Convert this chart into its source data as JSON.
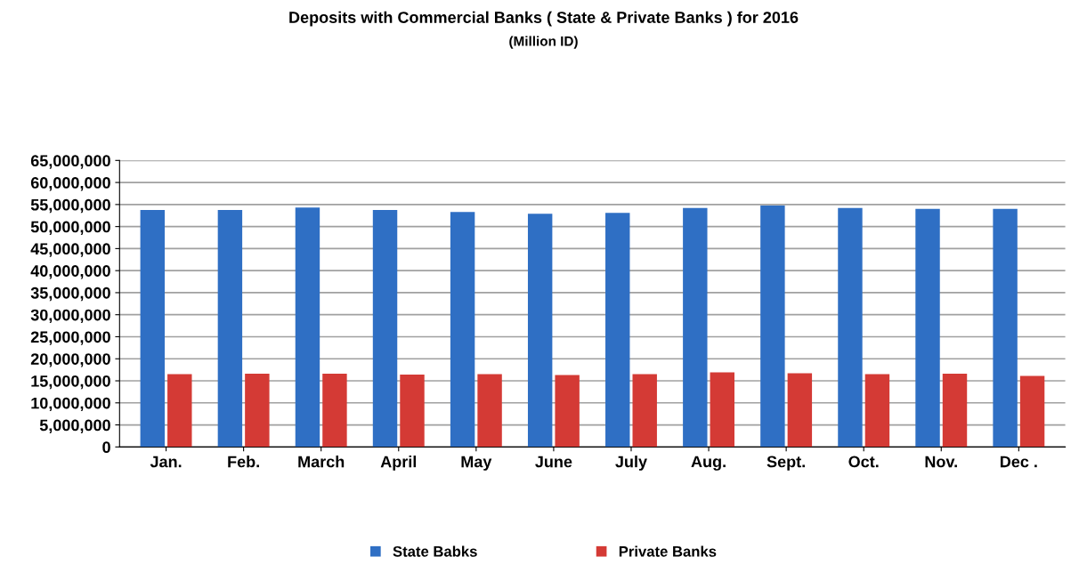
{
  "chart_data": {
    "type": "bar",
    "title": "Deposits with Commercial Banks ( State & Private Banks ) for 2016",
    "subtitle": "(Million ID)",
    "categories": [
      "Jan.",
      "Feb.",
      "March",
      "April",
      "May",
      "June",
      "July",
      "Aug.",
      "Sept.",
      "Oct.",
      "Nov.",
      "Dec ."
    ],
    "series": [
      {
        "name": "State Babks",
        "color": "#2f6fc4",
        "values": [
          53750000,
          53750000,
          54300000,
          53750000,
          53300000,
          52900000,
          53100000,
          54200000,
          54750000,
          54200000,
          54000000,
          54000000
        ]
      },
      {
        "name": "Private Banks",
        "color": "#d43a35",
        "values": [
          16500000,
          16600000,
          16600000,
          16400000,
          16500000,
          16300000,
          16500000,
          16900000,
          16700000,
          16500000,
          16600000,
          16100000
        ]
      }
    ],
    "ylim": [
      0,
      65000000
    ],
    "yticks": [
      {
        "value": 0,
        "label": "0"
      },
      {
        "value": 5000000,
        "label": "5,000,000"
      },
      {
        "value": 10000000,
        "label": "10,000,000"
      },
      {
        "value": 15000000,
        "label": "15,000,000"
      },
      {
        "value": 20000000,
        "label": "20,000,000"
      },
      {
        "value": 25000000,
        "label": "25,000,000"
      },
      {
        "value": 30000000,
        "label": "30,000,000"
      },
      {
        "value": 35000000,
        "label": "35,000,000"
      },
      {
        "value": 40000000,
        "label": "40,000,000"
      },
      {
        "value": 45000000,
        "label": "45,000,000"
      },
      {
        "value": 50000000,
        "label": "50,000,000"
      },
      {
        "value": 55000000,
        "label": "55,000,000"
      },
      {
        "value": 60000000,
        "label": "60,000,000"
      },
      {
        "value": 65000000,
        "label": "65,000,000"
      }
    ],
    "grid": "y",
    "legend": "bottom"
  }
}
